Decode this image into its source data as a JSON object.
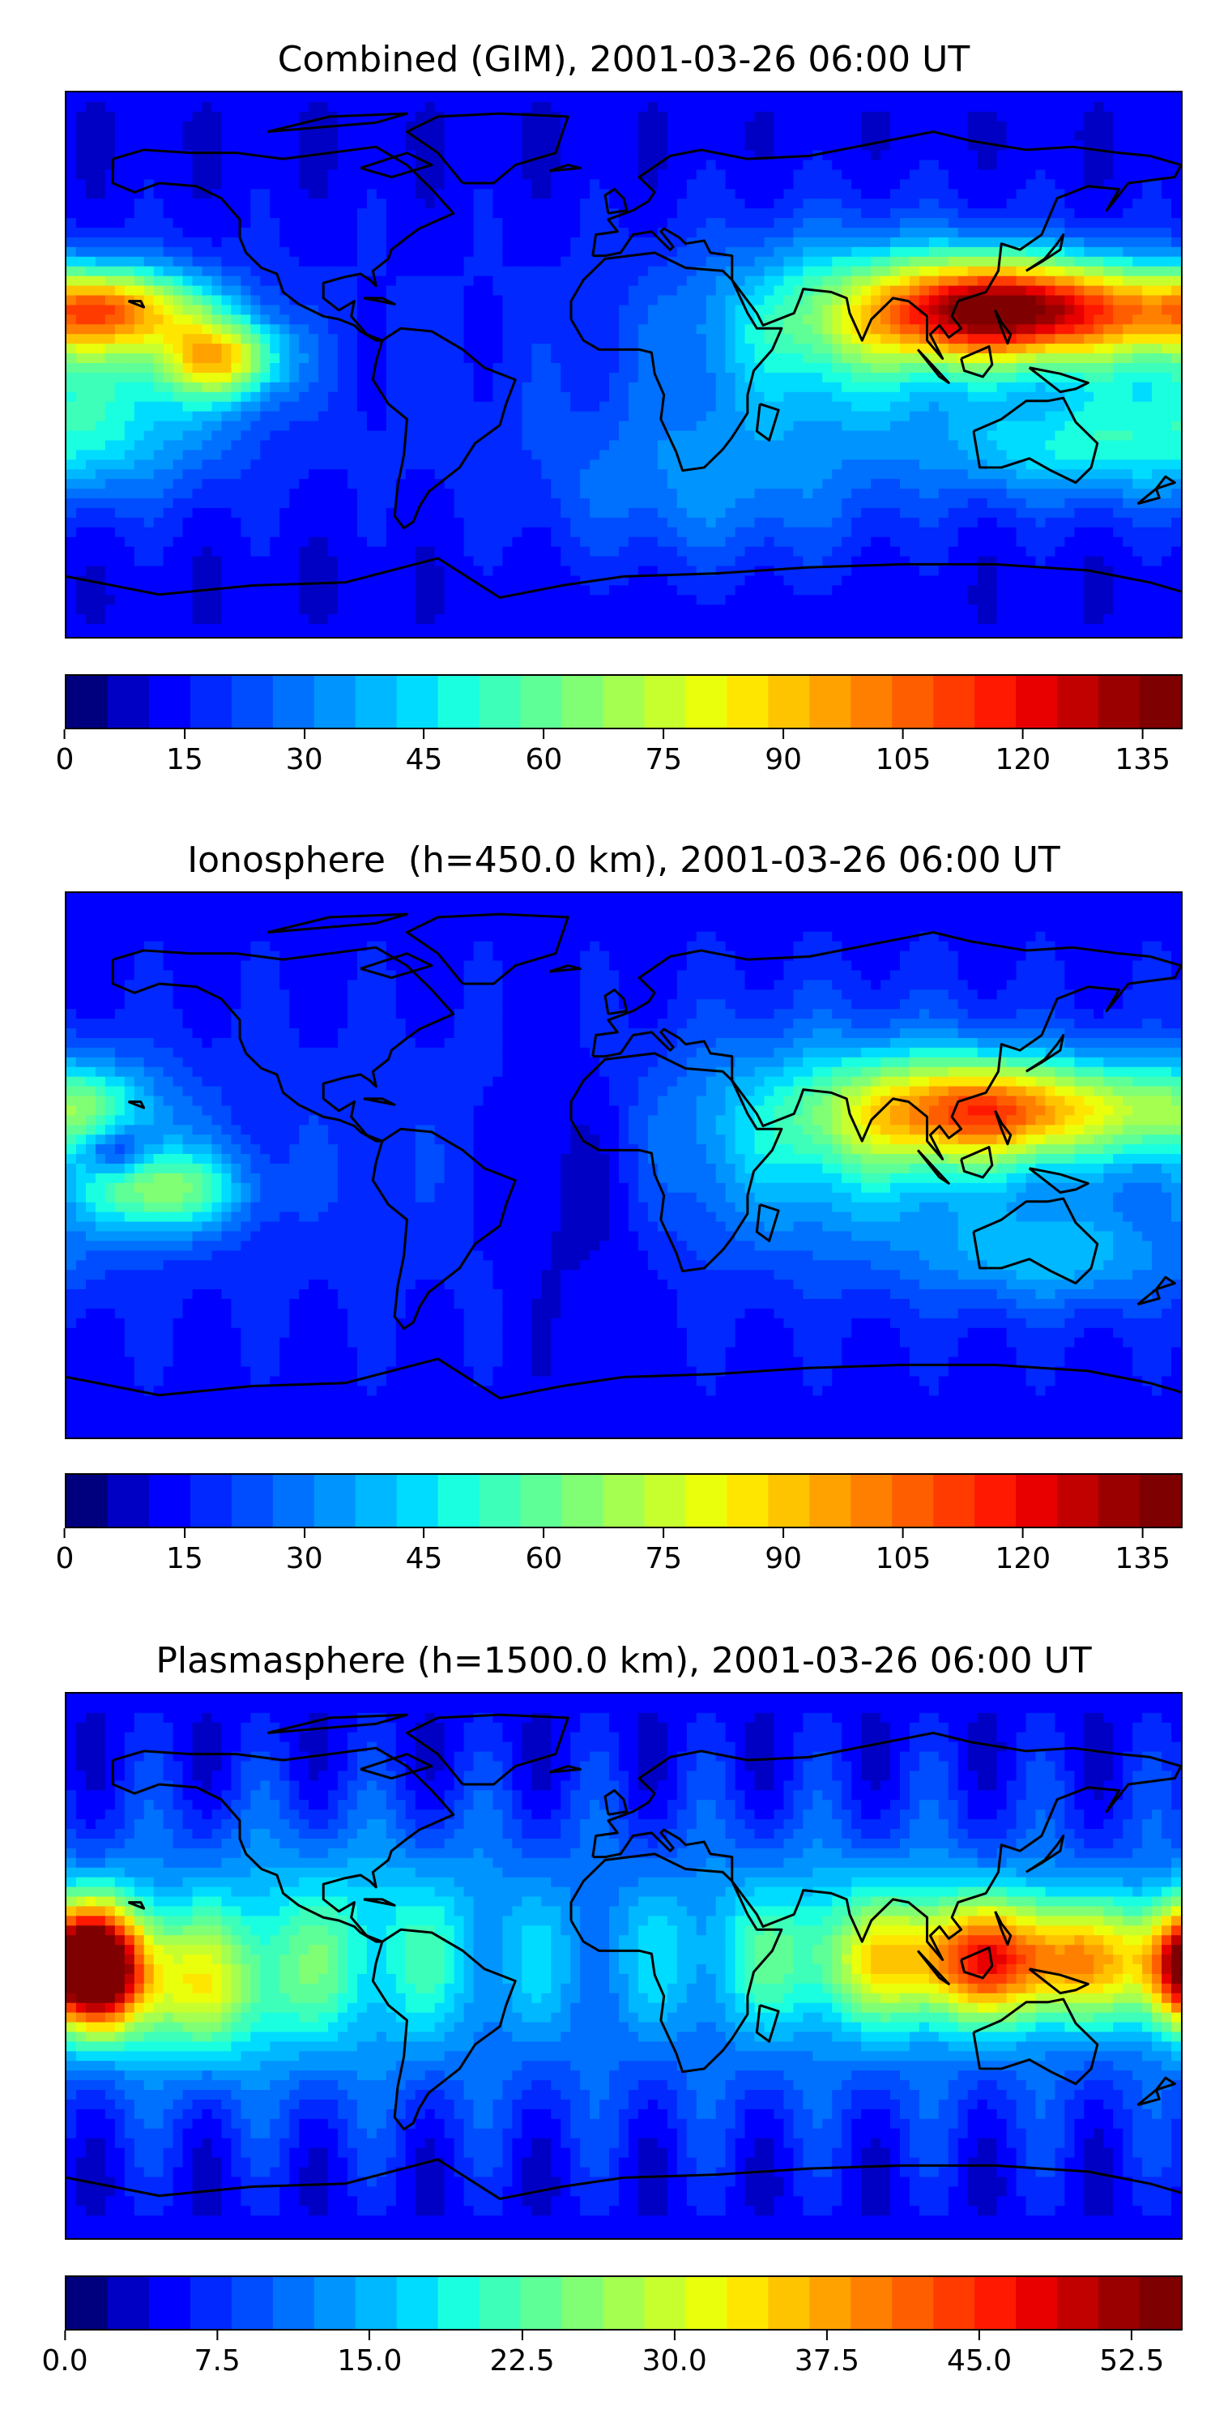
{
  "panels": [
    {
      "title": "Combined (GIM), 2001-03-26 06:00 UT",
      "colorbar": {
        "ticks": [
          "0",
          "15",
          "30",
          "45",
          "60",
          "75",
          "90",
          "105",
          "120",
          "135"
        ],
        "max": 140
      },
      "field_base": 14,
      "blobs": [
        {
          "lon": 125,
          "lat": 18,
          "amp": 118,
          "slon": 32,
          "slat": 12
        },
        {
          "lon": 70,
          "lat": 12,
          "amp": 35,
          "slon": 35,
          "slat": 22
        },
        {
          "lon": -165,
          "lat": 18,
          "amp": 72,
          "slon": 22,
          "slat": 10
        },
        {
          "lon": -130,
          "lat": 2,
          "amp": 62,
          "slon": 14,
          "slat": 9
        },
        {
          "lon": -170,
          "lat": -15,
          "amp": 30,
          "slon": 30,
          "slat": 20
        },
        {
          "lon": 140,
          "lat": -28,
          "amp": 25,
          "slon": 30,
          "slat": 12
        },
        {
          "lon": 30,
          "lat": -40,
          "amp": 18,
          "slon": 40,
          "slat": 20
        }
      ]
    },
    {
      "title": "Ionosphere  (h=450.0 km), 2001-03-26 06:00 UT",
      "colorbar": {
        "ticks": [
          "0",
          "15",
          "30",
          "45",
          "60",
          "75",
          "90",
          "105",
          "120",
          "135"
        ],
        "max": 140
      },
      "field_base": 16,
      "blobs": [
        {
          "lon": 120,
          "lat": 18,
          "amp": 82,
          "slon": 34,
          "slat": 12
        },
        {
          "lon": 70,
          "lat": 10,
          "amp": 28,
          "slon": 40,
          "slat": 25
        },
        {
          "lon": -150,
          "lat": -8,
          "amp": 48,
          "slon": 18,
          "slat": 10
        },
        {
          "lon": -175,
          "lat": 18,
          "amp": 34,
          "slon": 18,
          "slat": 12
        },
        {
          "lon": -165,
          "lat": 5,
          "amp": -30,
          "slon": 8,
          "slat": 6
        },
        {
          "lon": 140,
          "lat": -30,
          "amp": 22,
          "slon": 30,
          "slat": 12
        },
        {
          "lon": -15,
          "lat": -5,
          "amp": -12,
          "slon": 18,
          "slat": 30
        }
      ]
    },
    {
      "title": "Plasmasphere (h=1500.0 km), 2001-03-26 06:00 UT",
      "colorbar": {
        "ticks": [
          "0.0",
          "7.5",
          "15.0",
          "22.5",
          "30.0",
          "37.5",
          "45.0",
          "52.5"
        ],
        "max": 55
      },
      "field_base": 8,
      "blobs": [
        {
          "lon": -172,
          "lat": 0,
          "amp": 48,
          "slon": 12,
          "slat": 14
        },
        {
          "lon": 125,
          "lat": 2,
          "amp": 32,
          "slon": 35,
          "slat": 14
        },
        {
          "lon": -140,
          "lat": -8,
          "amp": 14,
          "slon": 20,
          "slat": 16
        },
        {
          "lon": -90,
          "lat": 5,
          "amp": 10,
          "slon": 40,
          "slat": 25
        },
        {
          "lon": 60,
          "lat": 5,
          "amp": 8,
          "slon": 40,
          "slat": 22
        }
      ]
    }
  ],
  "colormap": [
    "#00007f",
    "#0000c4",
    "#0000ff",
    "#0028ff",
    "#004cff",
    "#0070ff",
    "#0094ff",
    "#00b8ff",
    "#00dcff",
    "#1affe0",
    "#3dffba",
    "#5fff97",
    "#81ff74",
    "#a4ff51",
    "#c7ff2e",
    "#eaff0b",
    "#ffe600",
    "#ffc400",
    "#ffa200",
    "#ff8000",
    "#ff5e00",
    "#ff3b00",
    "#ff1900",
    "#e80000",
    "#c10000",
    "#9a0000",
    "#7f0000"
  ],
  "coastline_color": "#000000",
  "icons": [
    "coastline-map"
  ]
}
